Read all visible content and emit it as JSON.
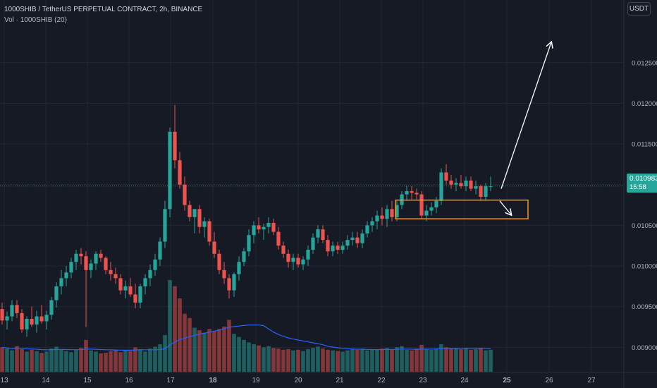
{
  "header": {
    "title": "1000SHIB / TetherUS PERPETUAL CONTRACT, 2h, BINANCE",
    "volume_label": "Vol · 1000SHIB (20)"
  },
  "currency_button": "USDT",
  "last_price": {
    "value": "0.010983",
    "countdown": "15:58"
  },
  "colors": {
    "background": "#161a25",
    "up": "#26a69a",
    "down": "#ef5350",
    "vol_ma": "#2962ff",
    "zone": "#f7931a",
    "arrow": "#ffffff"
  },
  "chart_data": {
    "type": "candlestick",
    "price_axis": {
      "ticks": [
        "0.012500",
        "0.012000",
        "0.011500",
        "0.011000",
        "0.010500",
        "0.010000",
        "0.009500",
        "0.009000"
      ],
      "range": [
        0.00876,
        0.01301
      ]
    },
    "time_axis": {
      "ticks": [
        "13",
        "14",
        "15",
        "16",
        "17",
        "18",
        "19",
        "20",
        "21",
        "22",
        "23",
        "24",
        "25",
        "26",
        "27"
      ],
      "bold": [
        "18",
        "25"
      ]
    },
    "candles_ohlc": [
      [
        0.00947,
        0.00955,
        0.00928,
        0.00933
      ],
      [
        0.00933,
        0.00944,
        0.00922,
        0.00938
      ],
      [
        0.00938,
        0.00958,
        0.00932,
        0.00952
      ],
      [
        0.00952,
        0.00958,
        0.00936,
        0.00942
      ],
      [
        0.00942,
        0.00947,
        0.00918,
        0.00922
      ],
      [
        0.00922,
        0.00938,
        0.00913,
        0.00935
      ],
      [
        0.00935,
        0.0095,
        0.00925,
        0.00928
      ],
      [
        0.00928,
        0.00945,
        0.00918,
        0.00938
      ],
      [
        0.00938,
        0.00952,
        0.00929,
        0.00932
      ],
      [
        0.00932,
        0.00945,
        0.00922,
        0.0094
      ],
      [
        0.0094,
        0.00962,
        0.00934,
        0.00958
      ],
      [
        0.00958,
        0.0098,
        0.00949,
        0.00975
      ],
      [
        0.00975,
        0.00995,
        0.00965,
        0.00985
      ],
      [
        0.00985,
        0.01,
        0.00975,
        0.00992
      ],
      [
        0.00992,
        0.0101,
        0.00985,
        0.01005
      ],
      [
        0.01005,
        0.0102,
        0.00995,
        0.01015
      ],
      [
        0.01015,
        0.01022,
        0.01002,
        0.01012
      ],
      [
        0.01012,
        0.01018,
        0.00925,
        0.00995
      ],
      [
        0.00995,
        0.01008,
        0.00985,
        0.01003
      ],
      [
        0.01003,
        0.01018,
        0.00995,
        0.01015
      ],
      [
        0.01015,
        0.0102,
        0.01005,
        0.0101
      ],
      [
        0.0101,
        0.01012,
        0.0099,
        0.00995
      ],
      [
        0.00995,
        0.01005,
        0.00982,
        0.0099
      ],
      [
        0.0099,
        0.00998,
        0.00978,
        0.00985
      ],
      [
        0.00985,
        0.0099,
        0.00965,
        0.0097
      ],
      [
        0.0097,
        0.00982,
        0.0096,
        0.00975
      ],
      [
        0.00975,
        0.00985,
        0.00962,
        0.00965
      ],
      [
        0.00965,
        0.00978,
        0.00948,
        0.00955
      ],
      [
        0.00955,
        0.00978,
        0.00948,
        0.00975
      ],
      [
        0.00975,
        0.0099,
        0.00965,
        0.00985
      ],
      [
        0.00985,
        0.01002,
        0.00975,
        0.00995
      ],
      [
        0.00995,
        0.01015,
        0.00988,
        0.01008
      ],
      [
        0.01008,
        0.01035,
        0.01,
        0.0103
      ],
      [
        0.0103,
        0.0108,
        0.01022,
        0.0107
      ],
      [
        0.0107,
        0.0117,
        0.0106,
        0.01165
      ],
      [
        0.01165,
        0.01198,
        0.0112,
        0.0113
      ],
      [
        0.0113,
        0.0114,
        0.01095,
        0.011
      ],
      [
        0.011,
        0.0111,
        0.01068,
        0.01075
      ],
      [
        0.01075,
        0.0108,
        0.01055,
        0.0106
      ],
      [
        0.0106,
        0.0107,
        0.0104,
        0.0107
      ],
      [
        0.0107,
        0.01075,
        0.0104,
        0.01048
      ],
      [
        0.01048,
        0.0106,
        0.01035,
        0.01055
      ],
      [
        0.01055,
        0.01058,
        0.01025,
        0.0103
      ],
      [
        0.0103,
        0.01042,
        0.0101,
        0.01015
      ],
      [
        0.01015,
        0.0102,
        0.0099,
        0.00995
      ],
      [
        0.00995,
        0.01005,
        0.00978,
        0.00985
      ],
      [
        0.00985,
        0.0099,
        0.0096,
        0.0097
      ],
      [
        0.0097,
        0.00992,
        0.00962,
        0.0099
      ],
      [
        0.0099,
        0.01012,
        0.00982,
        0.01005
      ],
      [
        0.01005,
        0.01022,
        0.01,
        0.01018
      ],
      [
        0.01018,
        0.01045,
        0.01012,
        0.01038
      ],
      [
        0.01038,
        0.01055,
        0.01028,
        0.0105
      ],
      [
        0.0105,
        0.0106,
        0.0104,
        0.01045
      ],
      [
        0.01045,
        0.01052,
        0.01032,
        0.01048
      ],
      [
        0.01048,
        0.0106,
        0.0104,
        0.01053
      ],
      [
        0.01053,
        0.01058,
        0.01038,
        0.01042
      ],
      [
        0.01042,
        0.01048,
        0.0102,
        0.01025
      ],
      [
        0.01025,
        0.0103,
        0.0101,
        0.01015
      ],
      [
        0.01015,
        0.0102,
        0.00998,
        0.01005
      ],
      [
        0.01005,
        0.01015,
        0.00995,
        0.0101
      ],
      [
        0.0101,
        0.01015,
        0.00998,
        0.01002
      ],
      [
        0.01002,
        0.01012,
        0.00995,
        0.01008
      ],
      [
        0.01008,
        0.01025,
        0.01,
        0.0102
      ],
      [
        0.0102,
        0.0104,
        0.01015,
        0.01035
      ],
      [
        0.01035,
        0.0105,
        0.01028,
        0.01045
      ],
      [
        0.01045,
        0.0105,
        0.01028,
        0.01032
      ],
      [
        0.01032,
        0.01038,
        0.01012,
        0.01018
      ],
      [
        0.01018,
        0.0103,
        0.01012,
        0.01025
      ],
      [
        0.01025,
        0.0103,
        0.01015,
        0.0102
      ],
      [
        0.0102,
        0.0103,
        0.01015,
        0.01025
      ],
      [
        0.01025,
        0.01038,
        0.0102,
        0.01032
      ],
      [
        0.01032,
        0.01042,
        0.01025,
        0.01035
      ],
      [
        0.01035,
        0.01042,
        0.01022,
        0.01028
      ],
      [
        0.01028,
        0.01045,
        0.01022,
        0.0104
      ],
      [
        0.0104,
        0.01055,
        0.01035,
        0.0105
      ],
      [
        0.0105,
        0.0106,
        0.01042,
        0.01055
      ],
      [
        0.01055,
        0.01068,
        0.01045,
        0.01062
      ],
      [
        0.01062,
        0.01072,
        0.0105,
        0.01058
      ],
      [
        0.01058,
        0.01075,
        0.01048,
        0.0107
      ],
      [
        0.0107,
        0.0108,
        0.01055,
        0.0106
      ],
      [
        0.0106,
        0.0108,
        0.01055,
        0.01075
      ],
      [
        0.01075,
        0.01092,
        0.0107,
        0.01088
      ],
      [
        0.01088,
        0.01098,
        0.0108,
        0.01092
      ],
      [
        0.01092,
        0.01098,
        0.01082,
        0.0109
      ],
      [
        0.0109,
        0.01095,
        0.01082,
        0.01088
      ],
      [
        0.01088,
        0.01092,
        0.01058,
        0.01062
      ],
      [
        0.01062,
        0.01075,
        0.01055,
        0.01068
      ],
      [
        0.01068,
        0.01078,
        0.01062,
        0.01072
      ],
      [
        0.01072,
        0.01085,
        0.01065,
        0.0108
      ],
      [
        0.0108,
        0.0112,
        0.01075,
        0.01115
      ],
      [
        0.01115,
        0.01125,
        0.011,
        0.01105
      ],
      [
        0.01105,
        0.01112,
        0.01095,
        0.011
      ],
      [
        0.011,
        0.01108,
        0.01092,
        0.01102
      ],
      [
        0.01102,
        0.01112,
        0.01095,
        0.01098
      ],
      [
        0.01098,
        0.0111,
        0.01092,
        0.01105
      ],
      [
        0.01105,
        0.0111,
        0.01092,
        0.01095
      ],
      [
        0.01095,
        0.01105,
        0.01088,
        0.01098
      ],
      [
        0.01098,
        0.011,
        0.0108,
        0.01085
      ],
      [
        0.01085,
        0.01102,
        0.0108,
        0.01098
      ],
      [
        0.01098,
        0.0111,
        0.01092,
        0.01098
      ]
    ],
    "volumes": [
      40,
      38,
      35,
      42,
      37,
      33,
      36,
      34,
      31,
      33,
      38,
      41,
      37,
      34,
      32,
      36,
      39,
      52,
      35,
      33,
      30,
      31,
      34,
      36,
      32,
      35,
      34,
      40,
      37,
      33,
      38,
      41,
      45,
      60,
      150,
      140,
      120,
      95,
      88,
      72,
      68,
      64,
      70,
      66,
      70,
      74,
      85,
      62,
      57,
      52,
      48,
      45,
      43,
      40,
      42,
      39,
      38,
      36,
      37,
      35,
      36,
      34,
      37,
      39,
      41,
      38,
      36,
      35,
      34,
      33,
      35,
      37,
      36,
      38,
      35,
      37,
      36,
      38,
      39,
      37,
      40,
      42,
      36,
      35,
      38,
      44,
      37,
      36,
      38,
      45,
      40,
      38,
      39,
      37,
      38,
      36,
      37,
      38,
      35,
      36
    ],
    "annotations": {
      "support_zone": {
        "price_top": 0.01081,
        "price_bottom": 0.01058
      },
      "projection_arrow": {
        "from_price": 0.01095,
        "to_price": 0.01275
      },
      "short_arrow": {
        "from_price": 0.0108,
        "to_price": 0.01063
      }
    }
  }
}
